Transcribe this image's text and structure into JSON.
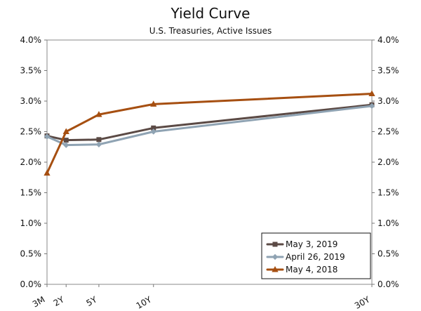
{
  "chart_data": {
    "type": "line",
    "title": "Yield Curve",
    "subtitle": "U.S. Treasuries, Active Issues",
    "xlabel": "",
    "ylabel": "",
    "categories": [
      "3M",
      "2Y",
      "5Y",
      "10Y",
      "30Y"
    ],
    "x": [
      0.25,
      2,
      5,
      10,
      30
    ],
    "xlim": [
      0.25,
      30
    ],
    "ylim": [
      0.0,
      4.0
    ],
    "y_ticks": [
      "0.0%",
      "0.5%",
      "1.0%",
      "1.5%",
      "2.0%",
      "2.5%",
      "3.0%",
      "3.5%",
      "4.0%"
    ],
    "y_ticks_right": [
      "0.0%",
      "0.5%",
      "1.0%",
      "1.5%",
      "2.0%",
      "2.5%",
      "3.0%",
      "3.5%",
      "4.0%"
    ],
    "series": [
      {
        "name": "May 3, 2019",
        "values": [
          2.43,
          2.36,
          2.37,
          2.56,
          2.94
        ],
        "color": "#5b4a45",
        "marker": "square"
      },
      {
        "name": "April 26, 2019",
        "values": [
          2.42,
          2.28,
          2.29,
          2.5,
          2.92
        ],
        "color": "#8fa3b3",
        "marker": "diamond"
      },
      {
        "name": "May 4, 2018",
        "values": [
          1.82,
          2.5,
          2.78,
          2.95,
          3.12
        ],
        "color": "#a64f11",
        "marker": "triangle"
      }
    ],
    "legend": {
      "position": "bottom-right",
      "entries": [
        "May 3, 2019",
        "April 26, 2019",
        "May 4, 2018"
      ]
    },
    "grid": false
  }
}
